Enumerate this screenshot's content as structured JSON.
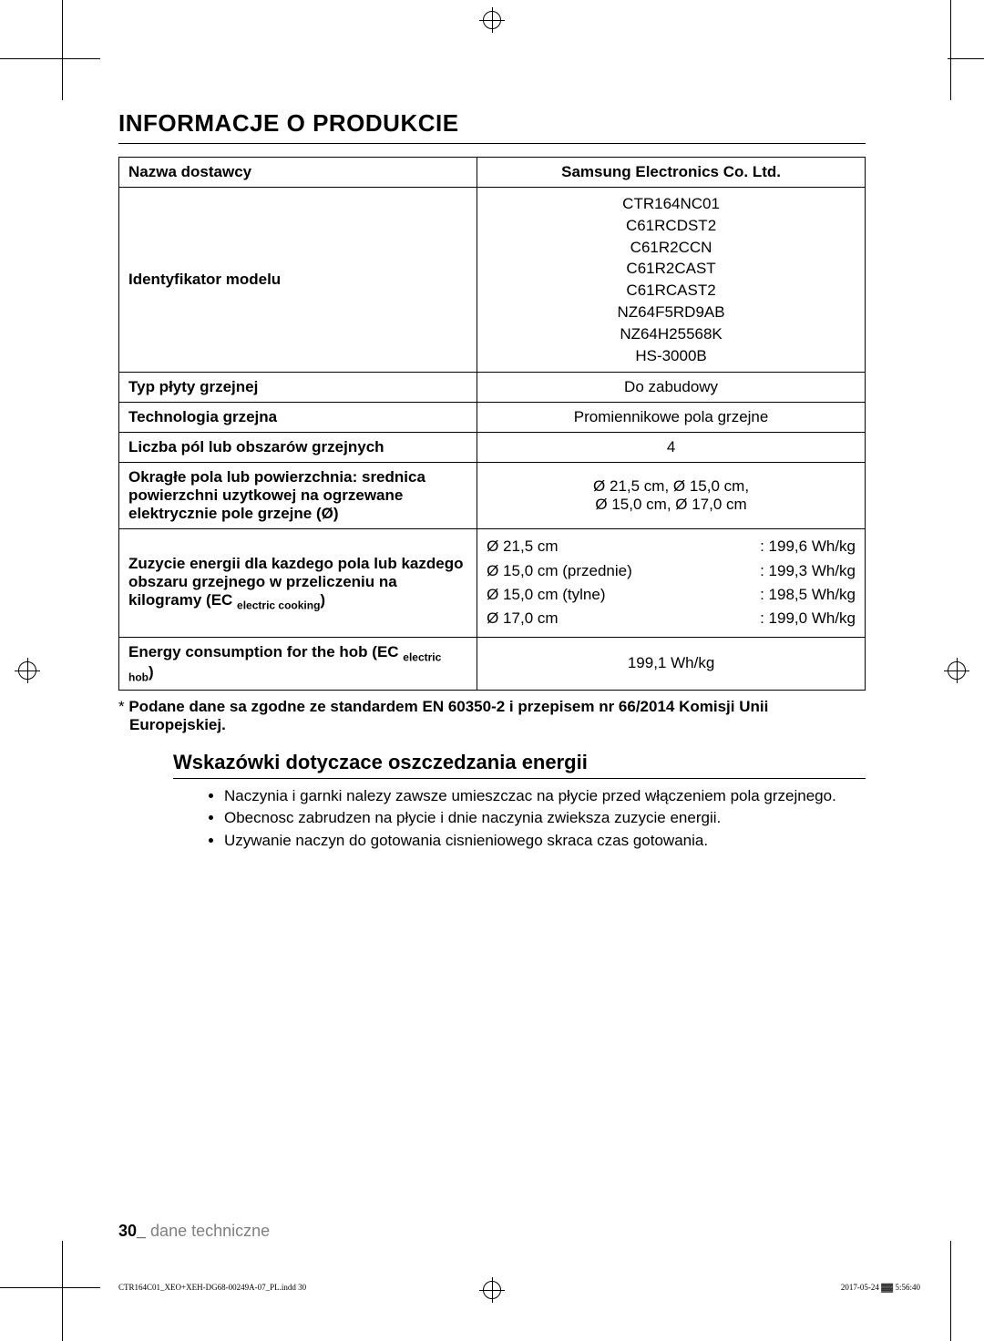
{
  "section_title": "INFORMACJE O PRODUKCIE",
  "table": {
    "rows": [
      {
        "label": "Nazwa dostawcy",
        "value": "Samsung Electronics Co. Ltd.",
        "bold_value": true
      },
      {
        "label": "Identyfikator modelu",
        "models": [
          "CTR164NC01",
          "C61RCDST2",
          "C61R2CCN",
          "C61R2CAST",
          "C61RCAST2",
          "NZ64F5RD9AB",
          "NZ64H25568K",
          "HS-3000B"
        ]
      },
      {
        "label": "Typ płyty grzejnej",
        "value": "Do zabudowy"
      },
      {
        "label": "Technologia grzejna",
        "value": "Promiennikowe pola grzejne"
      },
      {
        "label": "Liczba pól lub obszarów grzejnych",
        "value": "4"
      },
      {
        "label": "Okragłe pola lub powierzchnia: srednica powierzchni uzytkowej na ogrzewane elektrycznie pole grzejne (Ø)",
        "value_lines": [
          "Ø 21,5 cm, Ø 15,0 cm,",
          "Ø 15,0 cm, Ø 17,0 cm"
        ]
      },
      {
        "label_html": "Zuzycie energii dla kazdego pola lub kazdego obszaru grzejnego w przeliczeniu na kilogramy (EC <span class=\"sub\">electric cooking</span>)",
        "energy": [
          {
            "dim": "Ø 21,5 cm",
            "val": ": 199,6 Wh/kg"
          },
          {
            "dim": "Ø 15,0 cm (przednie)",
            "val": ": 199,3 Wh/kg"
          },
          {
            "dim": "Ø 15,0 cm (tylne)",
            "val": ": 198,5 Wh/kg"
          },
          {
            "dim": "Ø 17,0 cm",
            "val": ": 199,0 Wh/kg"
          }
        ]
      },
      {
        "label_html": "Energy consumption for the hob (EC <span class=\"sub\">electric hob</span>)",
        "value": "199,1 Wh/kg"
      }
    ]
  },
  "footnote_prefix": "* ",
  "footnote": "Podane dane sa zgodne ze standardem EN 60350-2 i przepisem nr 66/2014 Komisji Unii Europejskiej.",
  "subhead": "Wskazówki dotyczace oszczedzania energii",
  "tips": [
    "Naczynia i garnki nalezy zawsze umieszczac na płycie przed włączeniem pola grzejnego.",
    "Obecnosc zabrudzen na płycie i dnie naczynia zwieksza zuzycie energii.",
    "Uzywanie naczyn do gotowania cisnieniowego skraca czas gotowania."
  ],
  "footer_page": "30_",
  "footer_section": " dane techniczne",
  "print_left": "CTR164C01_XEO+XEH-DG68-00249A-07_PL.indd   30",
  "print_right": "2017-05-24   ▓▓ 5:56:40"
}
